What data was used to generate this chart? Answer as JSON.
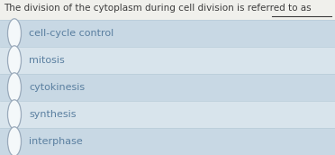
{
  "question": "The division of the cytoplasm during cell division is referred to as",
  "question_font_size": 7.5,
  "question_color": "#3d3d3d",
  "options": [
    "cell-cycle control",
    "mitosis",
    "cytokinesis",
    "synthesis",
    "interphase"
  ],
  "option_font_size": 8.0,
  "option_color": "#5a7fa0",
  "bg_color": "#e8eef3",
  "question_bg": "#f0f0ec",
  "row_bg_colors": [
    "#c8d8e4",
    "#d8e4ec"
  ],
  "separator_color": "#b8ccd8",
  "circle_edge_color": "#9aaabb",
  "circle_face_color": "#f4f8fa",
  "fig_width": 3.72,
  "fig_height": 1.72,
  "dpi": 100,
  "underline_color": "#3d3d3d"
}
